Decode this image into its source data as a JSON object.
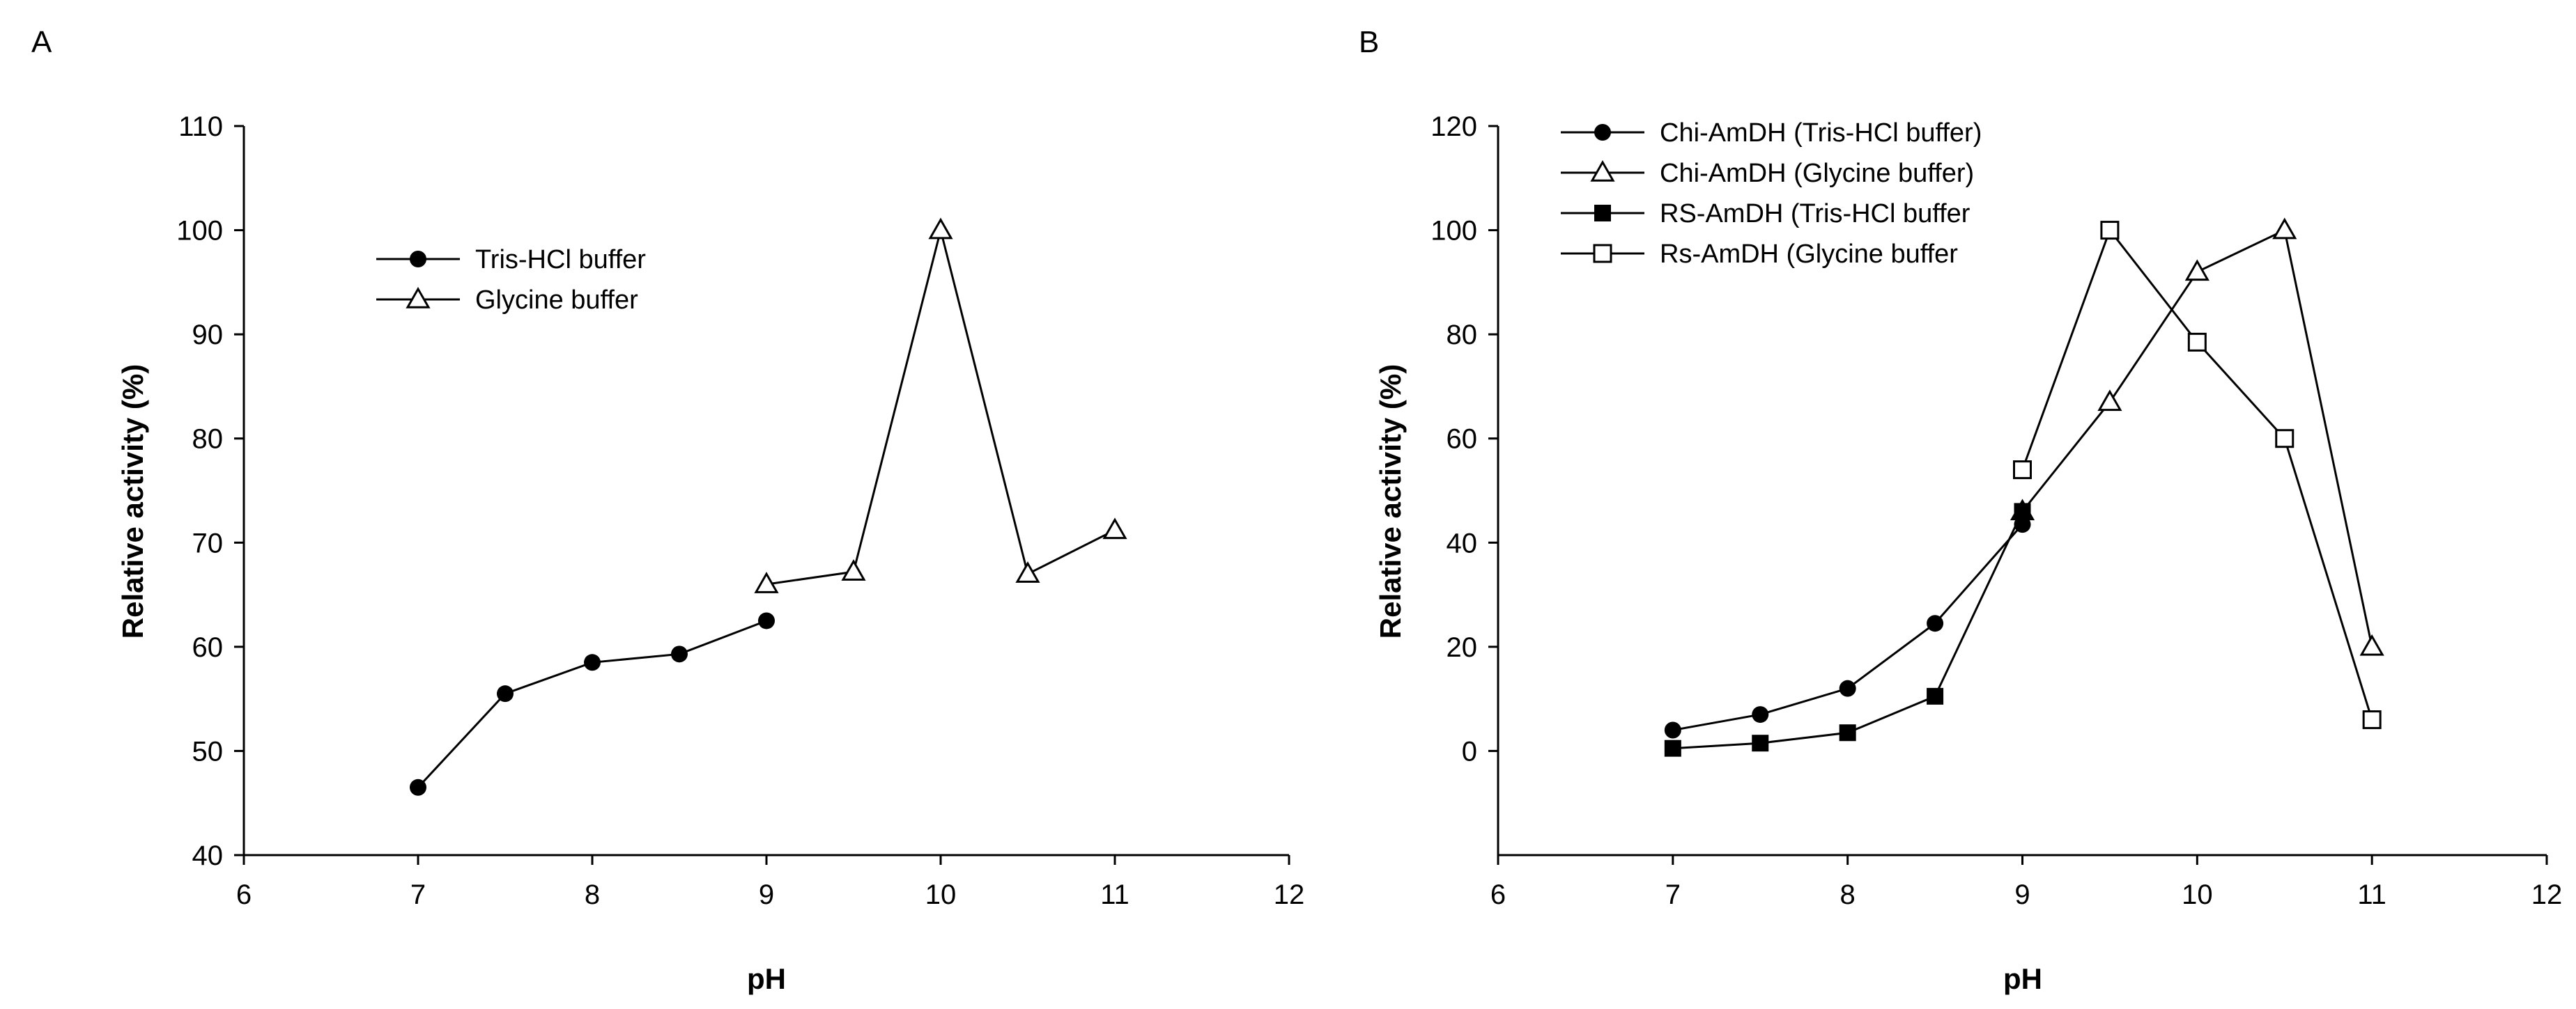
{
  "chart_data": [
    {
      "type": "line",
      "panel_label": "A",
      "xlabel": "pH",
      "ylabel": "Relative activity (%)",
      "xlim": [
        6,
        12
      ],
      "ylim": [
        40,
        110
      ],
      "xticks": [
        6,
        7,
        8,
        9,
        10,
        11,
        12
      ],
      "yticks": [
        40,
        50,
        60,
        70,
        80,
        90,
        100,
        110
      ],
      "legend_position": "upper-left",
      "series": [
        {
          "name": "Tris-HCl buffer",
          "marker": "filled-circle",
          "x": [
            7,
            7.5,
            8,
            8.5,
            9
          ],
          "y": [
            46.5,
            55.5,
            58.5,
            59.3,
            62.5
          ]
        },
        {
          "name": "Glycine buffer",
          "marker": "open-triangle",
          "x": [
            9,
            9.5,
            10,
            10.5,
            11
          ],
          "y": [
            66,
            67.2,
            100,
            67,
            71.2
          ]
        }
      ]
    },
    {
      "type": "line",
      "panel_label": "B",
      "xlabel": "pH",
      "ylabel": "Relative activity (%)",
      "xlim": [
        6,
        12
      ],
      "ylim": [
        -20,
        120
      ],
      "xticks": [
        6,
        7,
        8,
        9,
        10,
        11,
        12
      ],
      "yticks": [
        0,
        20,
        40,
        60,
        80,
        100,
        120
      ],
      "legend_position": "top-left",
      "series": [
        {
          "name": "Chi-AmDH (Tris-HCl buffer)",
          "marker": "filled-circle",
          "x": [
            7,
            7.5,
            8,
            8.5,
            9
          ],
          "y": [
            4,
            7,
            12,
            24.5,
            43.5
          ]
        },
        {
          "name": "Chi-AmDH (Glycine buffer)",
          "marker": "open-triangle",
          "x": [
            9,
            9.5,
            10,
            10.5,
            11
          ],
          "y": [
            46,
            67,
            92,
            100,
            20
          ]
        },
        {
          "name": "RS-AmDH (Tris-HCl buffer",
          "marker": "filled-square",
          "x": [
            7,
            7.5,
            8,
            8.5,
            9
          ],
          "y": [
            0.5,
            1.5,
            3.5,
            10.5,
            46
          ]
        },
        {
          "name": "Rs-AmDH (Glycine buffer",
          "marker": "open-square",
          "x": [
            9,
            9.5,
            10,
            10.5,
            11
          ],
          "y": [
            54,
            100,
            78.5,
            60,
            6
          ]
        }
      ]
    }
  ]
}
